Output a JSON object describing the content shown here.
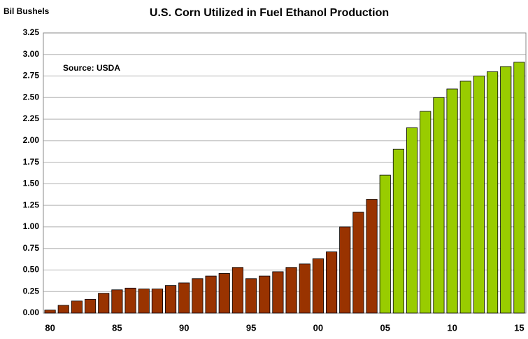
{
  "chart_data": {
    "type": "bar",
    "title": "U.S. Corn Utilized in Fuel Ethanol Production",
    "y_label": "Bil Bushels",
    "annotation": "Source: USDA",
    "categories": [
      "80",
      null,
      null,
      null,
      null,
      "85",
      null,
      null,
      null,
      null,
      "90",
      null,
      null,
      null,
      null,
      "95",
      null,
      null,
      null,
      null,
      "00",
      null,
      null,
      null,
      null,
      "05",
      null,
      null,
      null,
      null,
      "10",
      null,
      null,
      null,
      null,
      "15"
    ],
    "values": [
      0.035,
      0.09,
      0.14,
      0.16,
      0.23,
      0.27,
      0.29,
      0.28,
      0.28,
      0.32,
      0.35,
      0.4,
      0.43,
      0.46,
      0.53,
      0.4,
      0.43,
      0.48,
      0.53,
      0.57,
      0.63,
      0.71,
      1.0,
      1.17,
      1.32,
      1.6,
      1.9,
      2.15,
      2.34,
      2.5,
      2.6,
      2.69,
      2.75,
      2.8,
      2.86,
      2.91
    ],
    "colors": [
      "#993300",
      "#993300",
      "#993300",
      "#993300",
      "#993300",
      "#993300",
      "#993300",
      "#993300",
      "#993300",
      "#993300",
      "#993300",
      "#993300",
      "#993300",
      "#993300",
      "#993300",
      "#993300",
      "#993300",
      "#993300",
      "#993300",
      "#993300",
      "#993300",
      "#993300",
      "#993300",
      "#993300",
      "#993300",
      "#99cc00",
      "#99cc00",
      "#99cc00",
      "#99cc00",
      "#99cc00",
      "#99cc00",
      "#99cc00",
      "#99cc00",
      "#99cc00",
      "#99cc00",
      "#99cc00"
    ],
    "ylim": [
      0,
      3.25
    ],
    "yticks": [
      {
        "value": 0,
        "label": "0.00"
      },
      {
        "value": 0.25,
        "label": "0.25"
      },
      {
        "value": 0.5,
        "label": "0.50"
      },
      {
        "value": 0.75,
        "label": "0.75"
      },
      {
        "value": 1,
        "label": "1.00"
      },
      {
        "value": 1.25,
        "label": "1.25"
      },
      {
        "value": 1.5,
        "label": "1.50"
      },
      {
        "value": 1.75,
        "label": "1.75"
      },
      {
        "value": 2,
        "label": "2.00"
      },
      {
        "value": 2.25,
        "label": "2.25"
      },
      {
        "value": 2.5,
        "label": "2.50"
      },
      {
        "value": 2.75,
        "label": "2.75"
      },
      {
        "value": 3,
        "label": "3.00"
      },
      {
        "value": 3.25,
        "label": "3.25"
      }
    ],
    "grid": true
  }
}
